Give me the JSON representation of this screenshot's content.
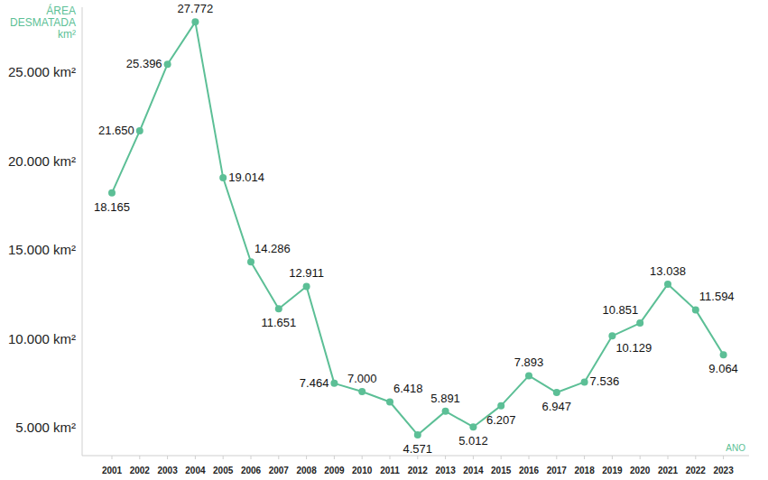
{
  "chart_data": {
    "type": "line",
    "y_label": "ÁREA DESMATADA km²",
    "x_label": "ANO",
    "categories": [
      "2001",
      "2002",
      "2003",
      "2004",
      "2005",
      "2006",
      "2007",
      "2008",
      "2009",
      "2010",
      "2011",
      "2012",
      "2013",
      "2014",
      "2015",
      "2016",
      "2017",
      "2018",
      "2019",
      "2020",
      "2021",
      "2022",
      "2023"
    ],
    "values": [
      18165,
      21650,
      25396,
      27772,
      19014,
      14286,
      11651,
      12911,
      7464,
      7000,
      6418,
      4571,
      5891,
      5012,
      6207,
      7893,
      6947,
      7536,
      10129,
      10851,
      13038,
      11594,
      9064
    ],
    "value_labels": [
      "18.165",
      "21.650",
      "25.396",
      "27.772",
      "19.014",
      "14.286",
      "11.651",
      "12.911",
      "7.464",
      "7.000",
      "6.418",
      "4.571",
      "5.891",
      "5.012",
      "6.207",
      "7.893",
      "6.947",
      "7.536",
      "10.129",
      "10.851",
      "13.038",
      "11.594",
      "9.064"
    ],
    "color": "#5cbf96",
    "marker": "circle",
    "grid": false,
    "data_labels": true,
    "ylim": [
      3400,
      28600
    ],
    "yticks": [
      {
        "value": 5000,
        "label": "5.000 km²"
      },
      {
        "value": 10000,
        "label": "10.000 km²"
      },
      {
        "value": 15000,
        "label": "15.000 km²"
      },
      {
        "value": 20000,
        "label": "20.000 km²"
      },
      {
        "value": 25000,
        "label": "25.000 km²"
      }
    ]
  }
}
